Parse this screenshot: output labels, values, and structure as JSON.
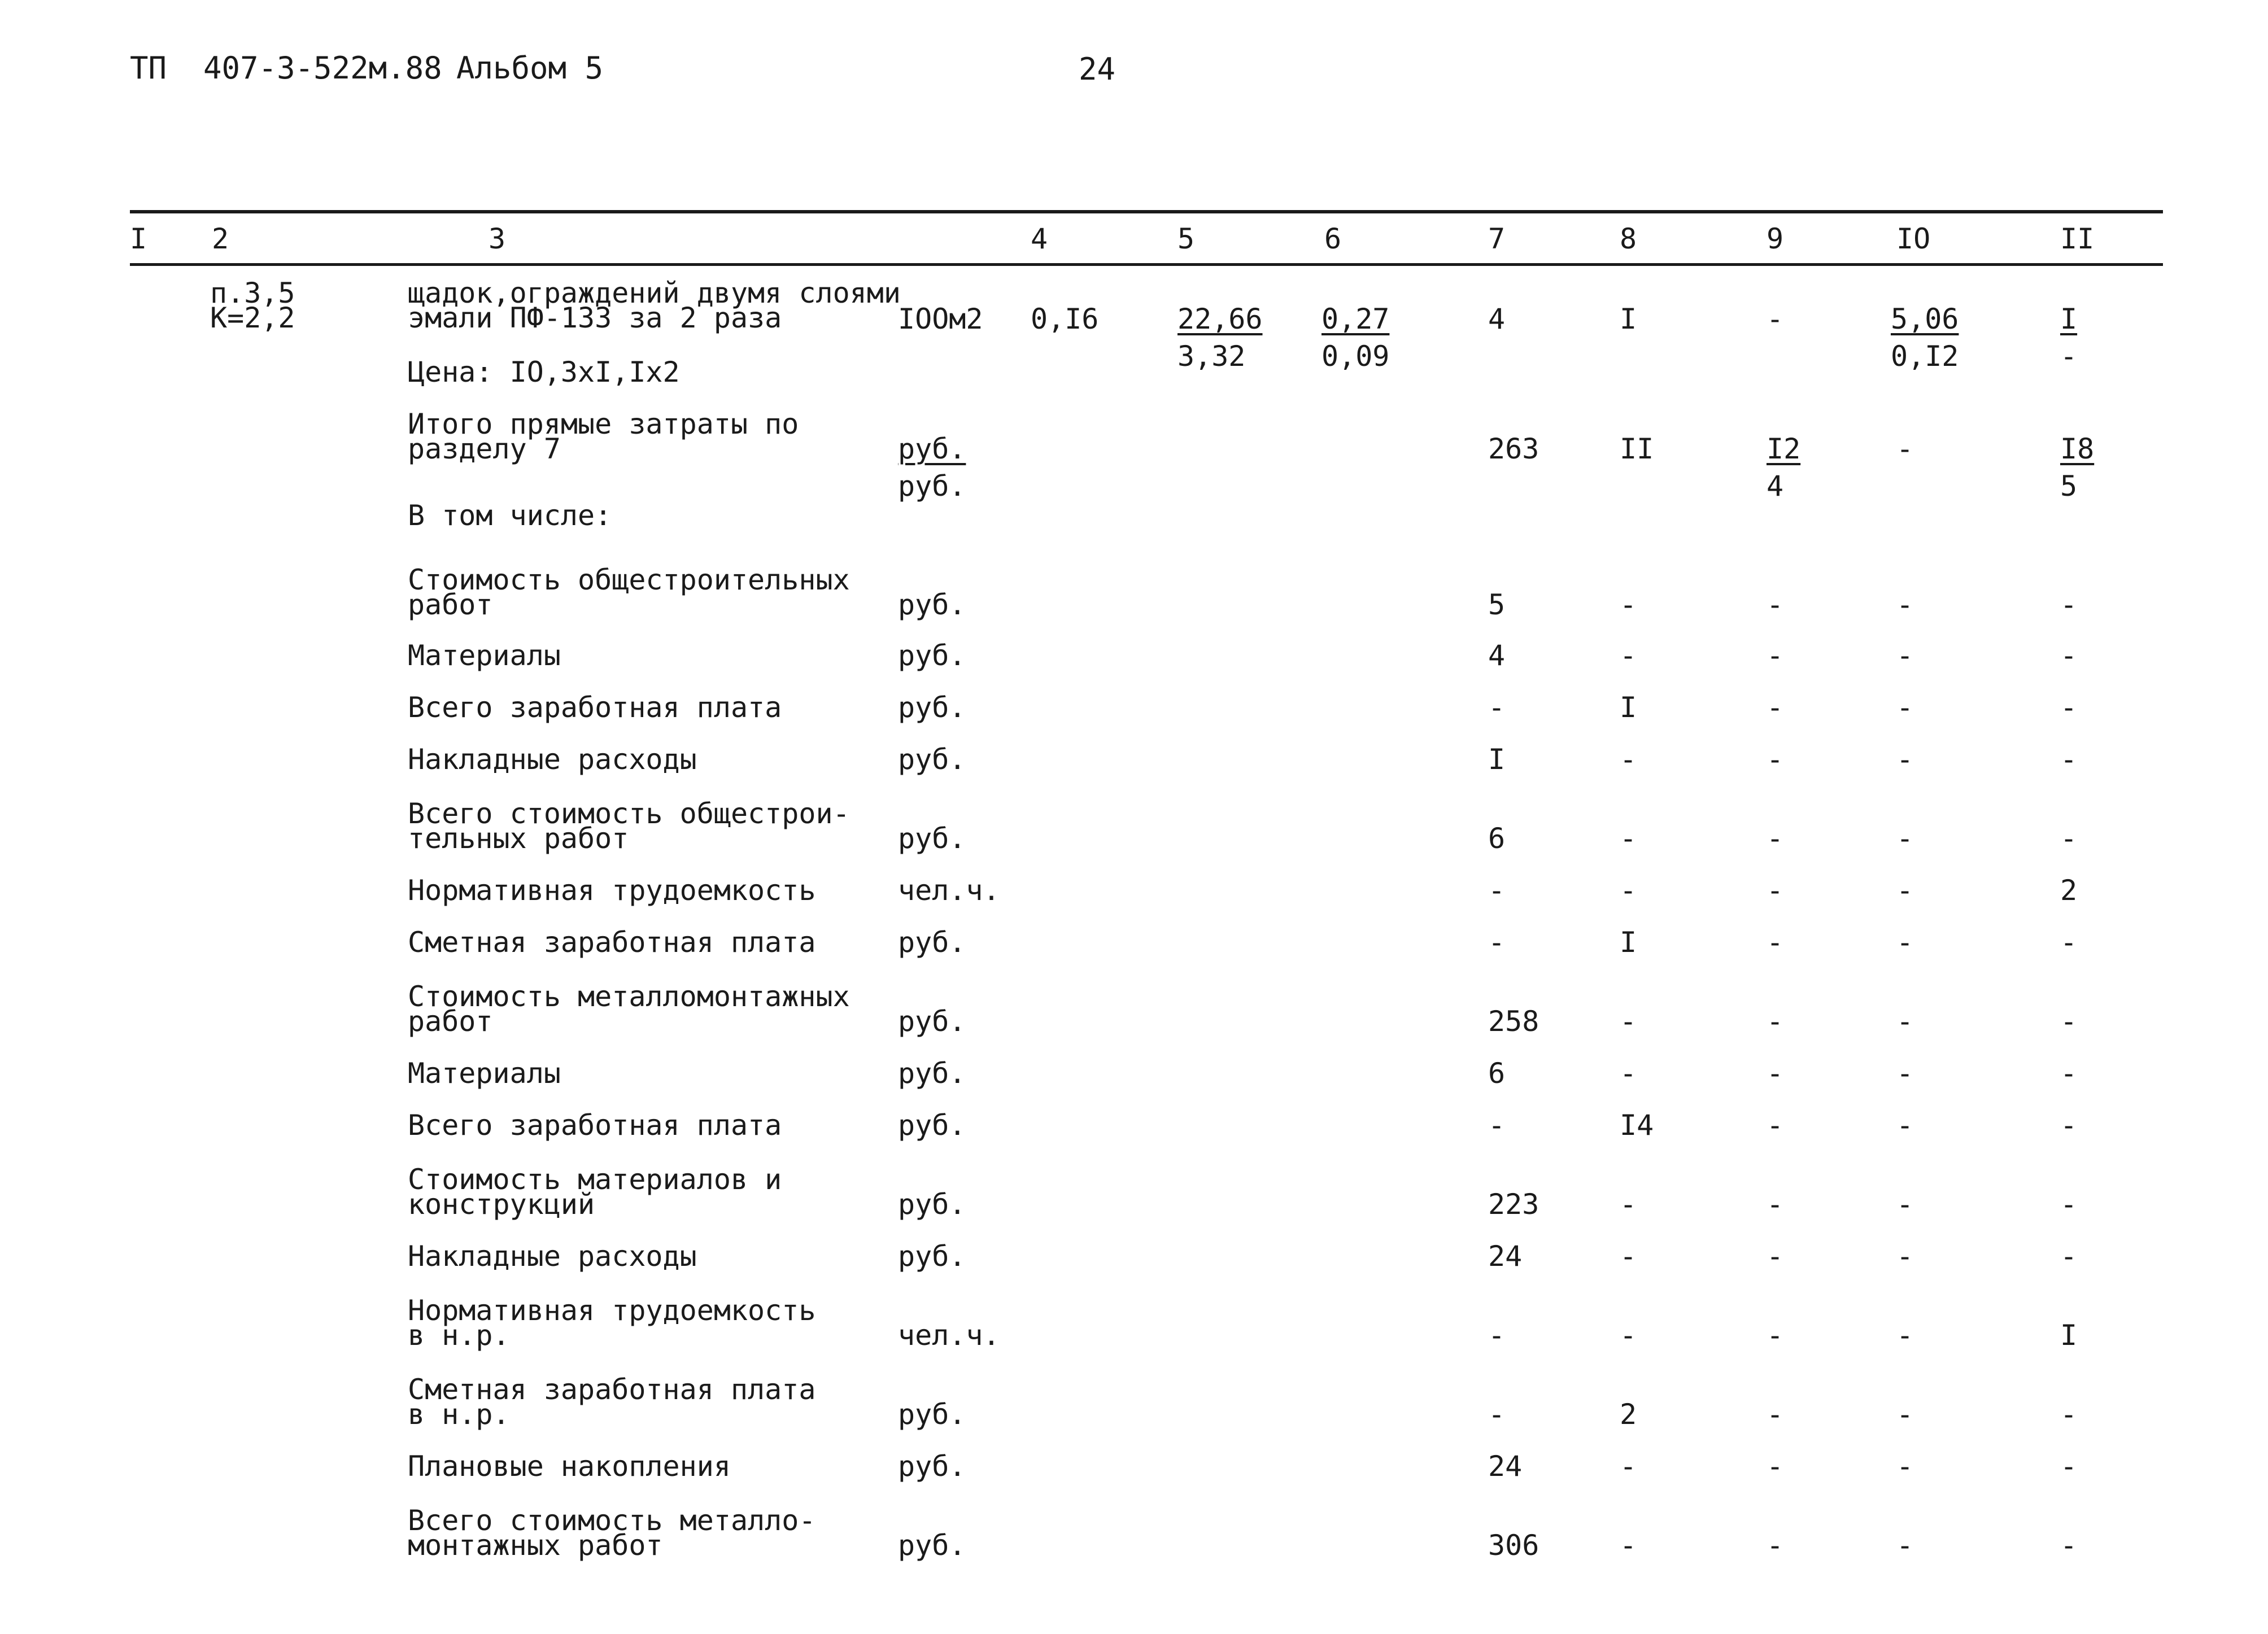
{
  "page_header": {
    "doc_code": "ТП  407-3-522м.88",
    "album": "Альбом 5",
    "page_number": "24"
  },
  "column_numbers": [
    "I",
    "2",
    "3",
    "4",
    "5",
    "6",
    "7",
    "8",
    "9",
    "IO",
    "II"
  ],
  "item": {
    "ref_line1": "п.3,5",
    "ref_line2": "К=2,2",
    "desc_line1": "щадок,ограждений двумя слоями",
    "desc_line2": "эмали ПФ-133 за 2 раза",
    "price_line": "Цена: IO,3xI,Ix2",
    "unit": "IOOм2",
    "qty": "0,I6",
    "col5_top": "22,66",
    "col5_bottom": "3,32",
    "col6_top": "0,27",
    "col6_bottom": "0,09",
    "col7": "4",
    "col8": "I",
    "col9": "-",
    "col10_top": "5,06",
    "col10_bottom": "0,I2",
    "col11_top": "I",
    "col11_bottom": "-"
  },
  "total": {
    "label_line1": "Итого прямые затраты по",
    "label_line2": "разделу 7",
    "unit_top": "руб.",
    "unit_bottom": "руб.",
    "col7": "263",
    "col8": "II",
    "col9_top": "I2",
    "col9_bottom": "4",
    "col10": "-",
    "col11_top": "I8",
    "col11_bottom": "5"
  },
  "including_label": "В том числе:",
  "rows": [
    {
      "label": [
        "Стоимость общестроительных",
        "работ"
      ],
      "unit": "руб.",
      "c7": "5",
      "c8": "-",
      "c9": "-",
      "c10": "-",
      "c11": "-"
    },
    {
      "label": [
        "Материалы"
      ],
      "unit": "руб.",
      "c7": "4",
      "c8": "-",
      "c9": "-",
      "c10": "-",
      "c11": "-"
    },
    {
      "label": [
        "Всего заработная плата"
      ],
      "unit": "руб.",
      "c7": "-",
      "c8": "I",
      "c9": "-",
      "c10": "-",
      "c11": "-"
    },
    {
      "label": [
        "Накладные расходы"
      ],
      "unit": "руб.",
      "c7": "I",
      "c8": "-",
      "c9": "-",
      "c10": "-",
      "c11": "-"
    },
    {
      "label": [
        "Всего стоимость общестрои-",
        "тельных работ"
      ],
      "unit": "руб.",
      "c7": "6",
      "c8": "-",
      "c9": "-",
      "c10": "-",
      "c11": "-"
    },
    {
      "label": [
        "Нормативная трудоемкость"
      ],
      "unit": "чел.ч.",
      "c7": "-",
      "c8": "-",
      "c9": "-",
      "c10": "-",
      "c11": "2"
    },
    {
      "label": [
        "Сметная заработная плата"
      ],
      "unit": "руб.",
      "c7": "-",
      "c8": "I",
      "c9": "-",
      "c10": "-",
      "c11": "-"
    },
    {
      "label": [
        "Стоимость металломонтажных",
        "работ"
      ],
      "unit": "руб.",
      "c7": "258",
      "c8": "-",
      "c9": "-",
      "c10": "-",
      "c11": "-"
    },
    {
      "label": [
        "Материалы"
      ],
      "unit": "руб.",
      "c7": "6",
      "c8": "-",
      "c9": "-",
      "c10": "-",
      "c11": "-"
    },
    {
      "label": [
        "Всего заработная плата"
      ],
      "unit": "руб.",
      "c7": "-",
      "c8": "I4",
      "c9": "-",
      "c10": "-",
      "c11": "-"
    },
    {
      "label": [
        "Стоимость материалов и",
        "конструкций"
      ],
      "unit": "руб.",
      "c7": "223",
      "c8": "-",
      "c9": "-",
      "c10": "-",
      "c11": "-"
    },
    {
      "label": [
        "Накладные расходы"
      ],
      "unit": "руб.",
      "c7": "24",
      "c8": "-",
      "c9": "-",
      "c10": "-",
      "c11": "-"
    },
    {
      "label": [
        "Нормативная трудоемкость",
        "в н.р."
      ],
      "unit": "чел.ч.",
      "c7": "-",
      "c8": "-",
      "c9": "-",
      "c10": "-",
      "c11": "I"
    },
    {
      "label": [
        "Сметная заработная плата",
        "в н.р."
      ],
      "unit": "руб.",
      "c7": "-",
      "c8": "2",
      "c9": "-",
      "c10": "-",
      "c11": "-"
    },
    {
      "label": [
        "Плановые накопления"
      ],
      "unit": "руб.",
      "c7": "24",
      "c8": "-",
      "c9": "-",
      "c10": "-",
      "c11": "-"
    },
    {
      "label": [
        "Всего стоимость металло-",
        "монтажных работ"
      ],
      "unit": "руб.",
      "c7": "306",
      "c8": "-",
      "c9": "-",
      "c10": "-",
      "c11": "-"
    }
  ]
}
